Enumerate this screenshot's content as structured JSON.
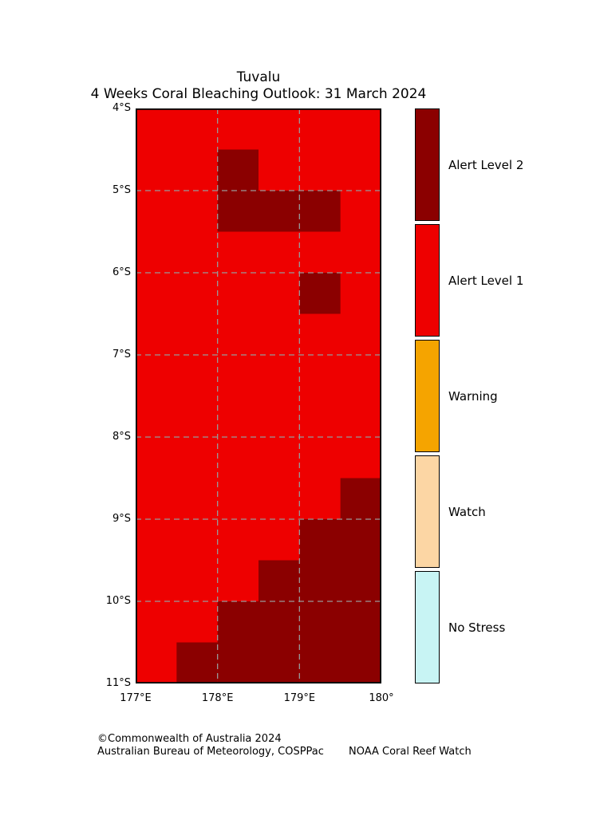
{
  "title": {
    "line1": "Tuvalu",
    "line2": "4 Weeks Coral Bleaching Outlook: 31 March 2024"
  },
  "chart_data": {
    "type": "heatmap",
    "title": "Tuvalu",
    "subtitle": "4 Weeks Coral Bleaching Outlook: 31 March 2024",
    "lon_range": [
      177,
      180
    ],
    "lat_range_south": [
      4,
      11
    ],
    "x_ticks": [
      "177°E",
      "178°E",
      "179°E",
      "180°"
    ],
    "x_tick_lons": [
      177,
      178,
      179,
      180
    ],
    "y_ticks": [
      "4°S",
      "5°S",
      "6°S",
      "7°S",
      "8°S",
      "9°S",
      "10°S",
      "11°S"
    ],
    "y_tick_lats": [
      4,
      5,
      6,
      7,
      8,
      9,
      10,
      11
    ],
    "grid": true,
    "base_level": "Alert Level 1",
    "alert_level_2_patches": [
      {
        "lon_min": 178.0,
        "lon_max": 178.5,
        "lat_min_s": 4.5,
        "lat_max_s": 5.0
      },
      {
        "lon_min": 178.0,
        "lon_max": 179.5,
        "lat_min_s": 5.0,
        "lat_max_s": 5.5
      },
      {
        "lon_min": 179.0,
        "lon_max": 179.5,
        "lat_min_s": 6.0,
        "lat_max_s": 6.5
      },
      {
        "lon_min": 179.5,
        "lon_max": 180.0,
        "lat_min_s": 8.5,
        "lat_max_s": 9.0
      },
      {
        "lon_min": 179.0,
        "lon_max": 180.0,
        "lat_min_s": 9.0,
        "lat_max_s": 11.0
      },
      {
        "lon_min": 178.5,
        "lon_max": 179.0,
        "lat_min_s": 9.5,
        "lat_max_s": 11.0
      },
      {
        "lon_min": 178.0,
        "lon_max": 178.5,
        "lat_min_s": 10.0,
        "lat_max_s": 11.0
      },
      {
        "lon_min": 177.5,
        "lon_max": 178.0,
        "lat_min_s": 10.5,
        "lat_max_s": 11.0
      }
    ]
  },
  "legend": {
    "entries": [
      {
        "label": "Alert Level 2",
        "color": "#8B0000"
      },
      {
        "label": "Alert Level 1",
        "color": "#EE0000"
      },
      {
        "label": "Warning",
        "color": "#F5A400"
      },
      {
        "label": "Watch",
        "color": "#FCD6A4"
      },
      {
        "label": "No Stress",
        "color": "#C8F4F4"
      }
    ]
  },
  "footer": {
    "copyright": "©Commonwealth of Australia 2024",
    "organisation": "Australian Bureau of Meteorology, COSPPac",
    "credit": "NOAA Coral Reef Watch"
  },
  "colors": {
    "grid": "#999999",
    "map_border": "#000000"
  }
}
